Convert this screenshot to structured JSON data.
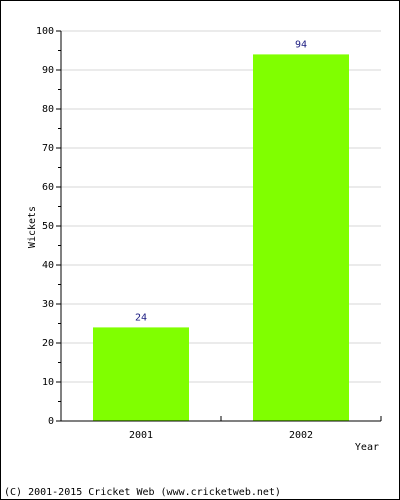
{
  "chart_data": {
    "type": "bar",
    "categories": [
      "2001",
      "2002"
    ],
    "values": [
      24,
      94
    ],
    "data_labels": [
      "24",
      "94"
    ],
    "xlabel": "Year",
    "ylabel": "Wickets",
    "ylim": [
      0,
      100
    ],
    "y_ticks": [
      "0",
      "10",
      "20",
      "30",
      "40",
      "50",
      "60",
      "70",
      "80",
      "90",
      "100"
    ],
    "grid": true,
    "legend": "none",
    "bar_color": "#80ff00",
    "label_color": "#1a1a80"
  },
  "footer": {
    "text": "(C) 2001-2015 Cricket Web (www.cricketweb.net)"
  }
}
